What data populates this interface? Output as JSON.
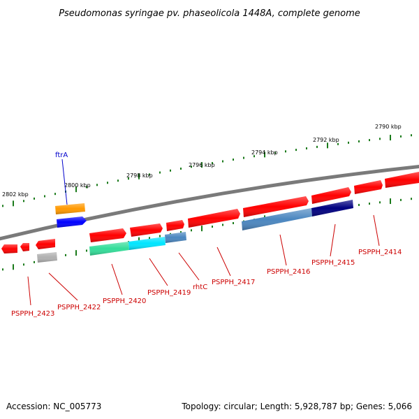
{
  "title": "Pseudomonas syringae pv. phaseolicola 1448A, complete genome",
  "footer": {
    "accession": "Accession: NC_005773",
    "summary": "Topology: circular; Length: 5,928,787 bp; Genes: 5,066"
  },
  "colors": {
    "backbone": "#808080",
    "ticks": "#1a7a1a",
    "label_red": "#cc0000",
    "label_blue": "#0000cc",
    "red": "#ff0000",
    "orange": "#ff9900",
    "blue": "#0000ff",
    "grey": "#b0b0b0",
    "green": "#33dd99",
    "cyan": "#00e5ff",
    "steel": "#4a86c0",
    "navy": "#000080"
  },
  "kbp_marks": [
    "2802 kbp",
    "2800 kbp",
    "2798 kbp",
    "2796 kbp",
    "2794 kbp",
    "2792 kbp",
    "2790 kbp"
  ],
  "gene_labels": [
    "ftrA",
    "PSPPH_2423",
    "PSPPH_2422",
    "PSPPH_2420",
    "PSPPH_2419",
    "rhtC",
    "PSPPH_2417",
    "PSPPH_2416",
    "PSPPH_2415",
    "PSPPH_2414"
  ]
}
